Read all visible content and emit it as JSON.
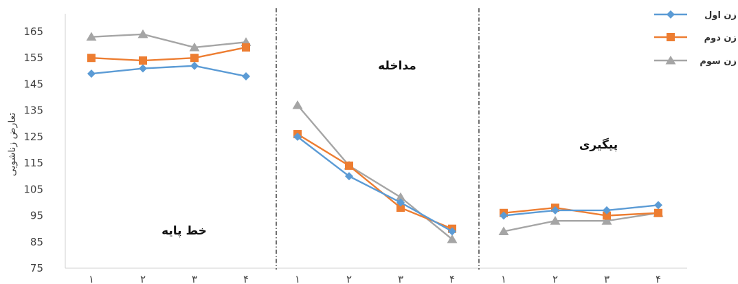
{
  "chart_data": {
    "type": "line",
    "ylabel": "تعارض زناشویی",
    "xlabel": "",
    "ylim": [
      75,
      165
    ],
    "yticks": [
      75,
      85,
      95,
      105,
      115,
      125,
      135,
      145,
      155,
      165
    ],
    "grid": false,
    "legend_position": "top-right",
    "phases": [
      {
        "name": "خط پایه",
        "x": [
          "۱",
          "۲",
          "۳",
          "۴"
        ],
        "series_values": [
          [
            149,
            151,
            152,
            148
          ],
          [
            155,
            154,
            155,
            159
          ],
          [
            163,
            164,
            159,
            161
          ]
        ]
      },
      {
        "name": "مداخله",
        "x": [
          "۱",
          "۲",
          "۳",
          "۴"
        ],
        "series_values": [
          [
            125,
            110,
            100,
            89
          ],
          [
            126,
            114,
            98,
            90
          ],
          [
            137,
            114,
            102,
            86
          ]
        ]
      },
      {
        "name": "پیگیری",
        "x": [
          "۱",
          "۲",
          "۳",
          "۴"
        ],
        "series_values": [
          [
            95,
            97,
            97,
            99
          ],
          [
            96,
            98,
            95,
            96
          ],
          [
            89,
            93,
            93,
            96
          ]
        ]
      }
    ],
    "series": [
      {
        "name": "زن اول",
        "color": "#5B9BD5",
        "marker": "diamond"
      },
      {
        "name": "زن دوم",
        "color": "#ED7D31",
        "marker": "square"
      },
      {
        "name": "زن سوم",
        "color": "#A5A5A5",
        "marker": "triangle"
      }
    ]
  }
}
